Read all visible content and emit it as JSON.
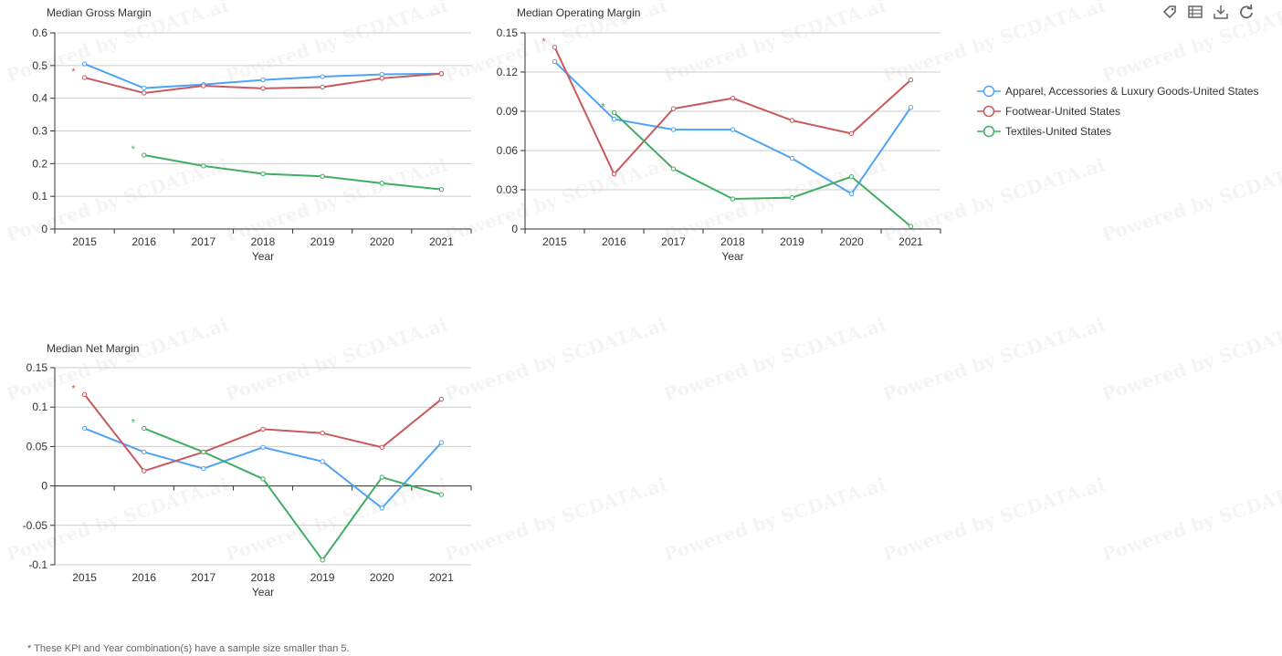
{
  "watermark": "Powered by SCDATA.ai",
  "toolbar": [
    "tag-icon",
    "data-view-icon",
    "download-icon",
    "refresh-icon"
  ],
  "legend": [
    {
      "name": "Apparel, Accessories & Luxury Goods-United States",
      "color": "#4fa3f5"
    },
    {
      "name": "Footwear-United States",
      "color": "#c9595c"
    },
    {
      "name": "Textiles-United States",
      "color": "#3fae63"
    }
  ],
  "footnote": "* These KPI and Year combination(s) have a sample size smaller than 5.",
  "chart_data": [
    {
      "type": "line",
      "title": "Median Gross Margin",
      "xlabel": "Year",
      "ylabel": "",
      "categories": [
        "2015",
        "2016",
        "2017",
        "2018",
        "2019",
        "2020",
        "2021"
      ],
      "ylim": [
        0,
        0.6
      ],
      "yticks": [
        "0",
        "0.1",
        "0.2",
        "0.3",
        "0.4",
        "0.5",
        "0.6"
      ],
      "grid": true,
      "series": [
        {
          "name": "Apparel, Accessories & Luxury Goods-United States",
          "values": [
            0.505,
            0.431,
            0.442,
            0.456,
            0.466,
            0.473,
            0.475
          ]
        },
        {
          "name": "Footwear-United States",
          "values": [
            0.463,
            0.416,
            0.438,
            0.43,
            0.434,
            0.461,
            0.475
          ]
        },
        {
          "name": "Textiles-United States",
          "values": [
            null,
            0.226,
            0.193,
            0.169,
            0.161,
            0.14,
            0.121
          ]
        }
      ],
      "annotations": [
        {
          "text": "*",
          "series": "Footwear-United States",
          "category": "2015"
        },
        {
          "text": "*",
          "series": "Textiles-United States",
          "category": "2016"
        }
      ]
    },
    {
      "type": "line",
      "title": "Median Operating Margin",
      "xlabel": "Year",
      "ylabel": "",
      "categories": [
        "2015",
        "2016",
        "2017",
        "2018",
        "2019",
        "2020",
        "2021"
      ],
      "ylim": [
        0,
        0.15
      ],
      "yticks": [
        "0",
        "0.03",
        "0.06",
        "0.09",
        "0.12",
        "0.15"
      ],
      "grid": true,
      "series": [
        {
          "name": "Apparel, Accessories & Luxury Goods-United States",
          "values": [
            0.128,
            0.084,
            0.076,
            0.076,
            0.054,
            0.027,
            0.093
          ]
        },
        {
          "name": "Footwear-United States",
          "values": [
            0.139,
            0.042,
            0.092,
            0.1,
            0.083,
            0.073,
            0.114
          ]
        },
        {
          "name": "Textiles-United States",
          "values": [
            null,
            0.089,
            0.046,
            0.023,
            0.024,
            0.04,
            0.002
          ]
        }
      ],
      "annotations": [
        {
          "text": "*",
          "series": "Footwear-United States",
          "category": "2015"
        },
        {
          "text": "*",
          "series": "Textiles-United States",
          "category": "2016"
        }
      ]
    },
    {
      "type": "line",
      "title": "Median Net Margin",
      "xlabel": "Year",
      "ylabel": "",
      "categories": [
        "2015",
        "2016",
        "2017",
        "2018",
        "2019",
        "2020",
        "2021"
      ],
      "ylim": [
        -0.1,
        0.15
      ],
      "yticks": [
        "-0.1",
        "-0.05",
        "0",
        "0.05",
        "0.1",
        "0.15"
      ],
      "grid": true,
      "series": [
        {
          "name": "Apparel, Accessories & Luxury Goods-United States",
          "values": [
            0.073,
            0.043,
            0.022,
            0.049,
            0.031,
            -0.028,
            0.055
          ]
        },
        {
          "name": "Footwear-United States",
          "values": [
            0.116,
            0.019,
            0.043,
            0.072,
            0.067,
            0.049,
            0.11
          ]
        },
        {
          "name": "Textiles-United States",
          "values": [
            null,
            0.073,
            0.043,
            0.009,
            -0.094,
            0.011,
            -0.011
          ]
        }
      ],
      "annotations": [
        {
          "text": "*",
          "series": "Footwear-United States",
          "category": "2015"
        },
        {
          "text": "*",
          "series": "Textiles-United States",
          "category": "2016"
        }
      ]
    }
  ]
}
